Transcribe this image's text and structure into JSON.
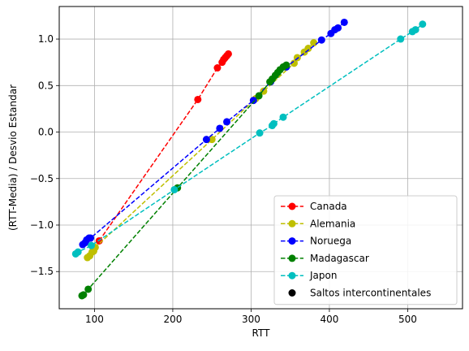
{
  "chart_data": {
    "type": "line",
    "title": "",
    "xlabel": "RTT",
    "ylabel": "(RTT-Media) / Desvio Estandar",
    "xlim": [
      55,
      570
    ],
    "ylim": [
      -1.9,
      1.35
    ],
    "xticks": [
      100,
      200,
      300,
      400,
      500
    ],
    "yticks": [
      -1.5,
      -1.0,
      -0.5,
      0.0,
      0.5,
      1.0
    ],
    "xtick_labels": [
      "100",
      "200",
      "300",
      "400",
      "500"
    ],
    "ytick_labels": [
      "−1.5",
      "−1.0",
      "−0.5",
      "0.0",
      "0.5",
      "1.0"
    ],
    "grid": true,
    "legend_position": "lower-right",
    "series": [
      {
        "name": "Canada",
        "color": "#ff0000",
        "points": [
          [
            106,
            -1.17
          ],
          [
            232,
            0.35
          ],
          [
            257,
            0.69
          ],
          [
            263,
            0.75
          ],
          [
            265,
            0.78
          ],
          [
            267,
            0.8
          ],
          [
            269,
            0.82
          ],
          [
            271,
            0.84
          ]
        ]
      },
      {
        "name": "Alemania",
        "color": "#bfbf00",
        "points": [
          [
            91,
            -1.35
          ],
          [
            94,
            -1.33
          ],
          [
            97,
            -1.29
          ],
          [
            99,
            -1.28
          ],
          [
            101,
            -1.24
          ],
          [
            250,
            -0.08
          ],
          [
            306,
            0.36
          ],
          [
            316,
            0.44
          ],
          [
            355,
            0.74
          ],
          [
            359,
            0.8
          ],
          [
            368,
            0.86
          ],
          [
            373,
            0.9
          ],
          [
            380,
            0.96
          ]
        ]
      },
      {
        "name": "Noruega",
        "color": "#0000ff",
        "points": [
          [
            85,
            -1.21
          ],
          [
            88,
            -1.19
          ],
          [
            90,
            -1.16
          ],
          [
            93,
            -1.14
          ],
          [
            95,
            -1.14
          ],
          [
            243,
            -0.08
          ],
          [
            260,
            0.04
          ],
          [
            269,
            0.11
          ],
          [
            303,
            0.34
          ],
          [
            325,
            0.54
          ],
          [
            345,
            0.7
          ],
          [
            390,
            0.99
          ],
          [
            402,
            1.06
          ],
          [
            407,
            1.1
          ],
          [
            411,
            1.12
          ],
          [
            419,
            1.18
          ]
        ]
      },
      {
        "name": "Madagascar",
        "color": "#008000",
        "points": [
          [
            84,
            -1.76
          ],
          [
            86,
            -1.75
          ],
          [
            92,
            -1.69
          ],
          [
            206,
            -0.6
          ],
          [
            310,
            0.39
          ],
          [
            324,
            0.54
          ],
          [
            327,
            0.57
          ],
          [
            331,
            0.61
          ],
          [
            334,
            0.64
          ],
          [
            337,
            0.67
          ],
          [
            341,
            0.7
          ],
          [
            345,
            0.72
          ]
        ]
      },
      {
        "name": "Japon",
        "color": "#00bfbf",
        "points": [
          [
            76,
            -1.31
          ],
          [
            79,
            -1.29
          ],
          [
            96,
            -1.22
          ],
          [
            202,
            -0.62
          ],
          [
            311,
            -0.01
          ],
          [
            327,
            0.07
          ],
          [
            329,
            0.09
          ],
          [
            341,
            0.16
          ],
          [
            491,
            1.0
          ],
          [
            506,
            1.08
          ],
          [
            510,
            1.1
          ],
          [
            519,
            1.16
          ]
        ]
      }
    ],
    "extra_legend": [
      {
        "name": "Saltos intercontinentales",
        "color": "#000000",
        "marker": "circle"
      }
    ]
  }
}
